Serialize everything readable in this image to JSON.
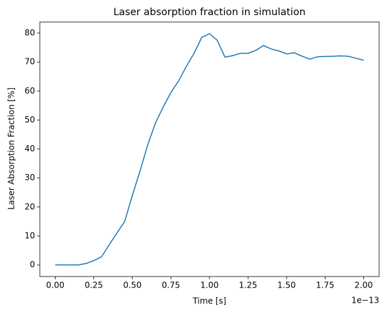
{
  "chart_data": {
    "type": "line",
    "title": "Laser absorption fraction in simulation",
    "x_label": "Time [s]",
    "y_label": "Laser Absorption Fraction [%]",
    "x_offset_label": "1e−13",
    "x": [
      0,
      0.05,
      0.1,
      0.15,
      0.2,
      0.25,
      0.3,
      0.35,
      0.4,
      0.45,
      0.5,
      0.55,
      0.6,
      0.65,
      0.7,
      0.75,
      0.8,
      0.85,
      0.9,
      0.95,
      1.0,
      1.05,
      1.1,
      1.15,
      1.2,
      1.25,
      1.3,
      1.35,
      1.4,
      1.45,
      1.5,
      1.55,
      1.6,
      1.65,
      1.7,
      1.75,
      1.8,
      1.85,
      1.9,
      1.95,
      2.0
    ],
    "values": [
      0,
      0,
      0,
      0,
      0.5,
      1.5,
      2.8,
      7,
      11,
      15,
      24,
      32.5,
      41.5,
      49,
      54.5,
      59.5,
      63.5,
      68.5,
      73,
      78.5,
      79.8,
      77.5,
      71.7,
      72.2,
      73,
      73,
      74,
      75.7,
      74.5,
      73.8,
      72.8,
      73.2,
      72,
      71,
      71.8,
      71.9,
      72,
      72.1,
      72,
      71.3,
      70.6
    ],
    "color": "#1f77b4",
    "xlim": [
      -0.1,
      2.1
    ],
    "xticks": [
      {
        "value": 0,
        "label": "0.00"
      },
      {
        "value": 0.25,
        "label": "0.25"
      },
      {
        "value": 0.5,
        "label": "0.50"
      },
      {
        "value": 0.75,
        "label": "0.75"
      },
      {
        "value": 1,
        "label": "1.00"
      },
      {
        "value": 1.25,
        "label": "1.25"
      },
      {
        "value": 1.5,
        "label": "1.50"
      },
      {
        "value": 1.75,
        "label": "1.75"
      },
      {
        "value": 2,
        "label": "2.00"
      }
    ],
    "ylim": [
      -4,
      83.8
    ],
    "yticks": [
      0,
      10,
      20,
      30,
      40,
      50,
      60,
      70,
      80
    ],
    "grid": false
  }
}
